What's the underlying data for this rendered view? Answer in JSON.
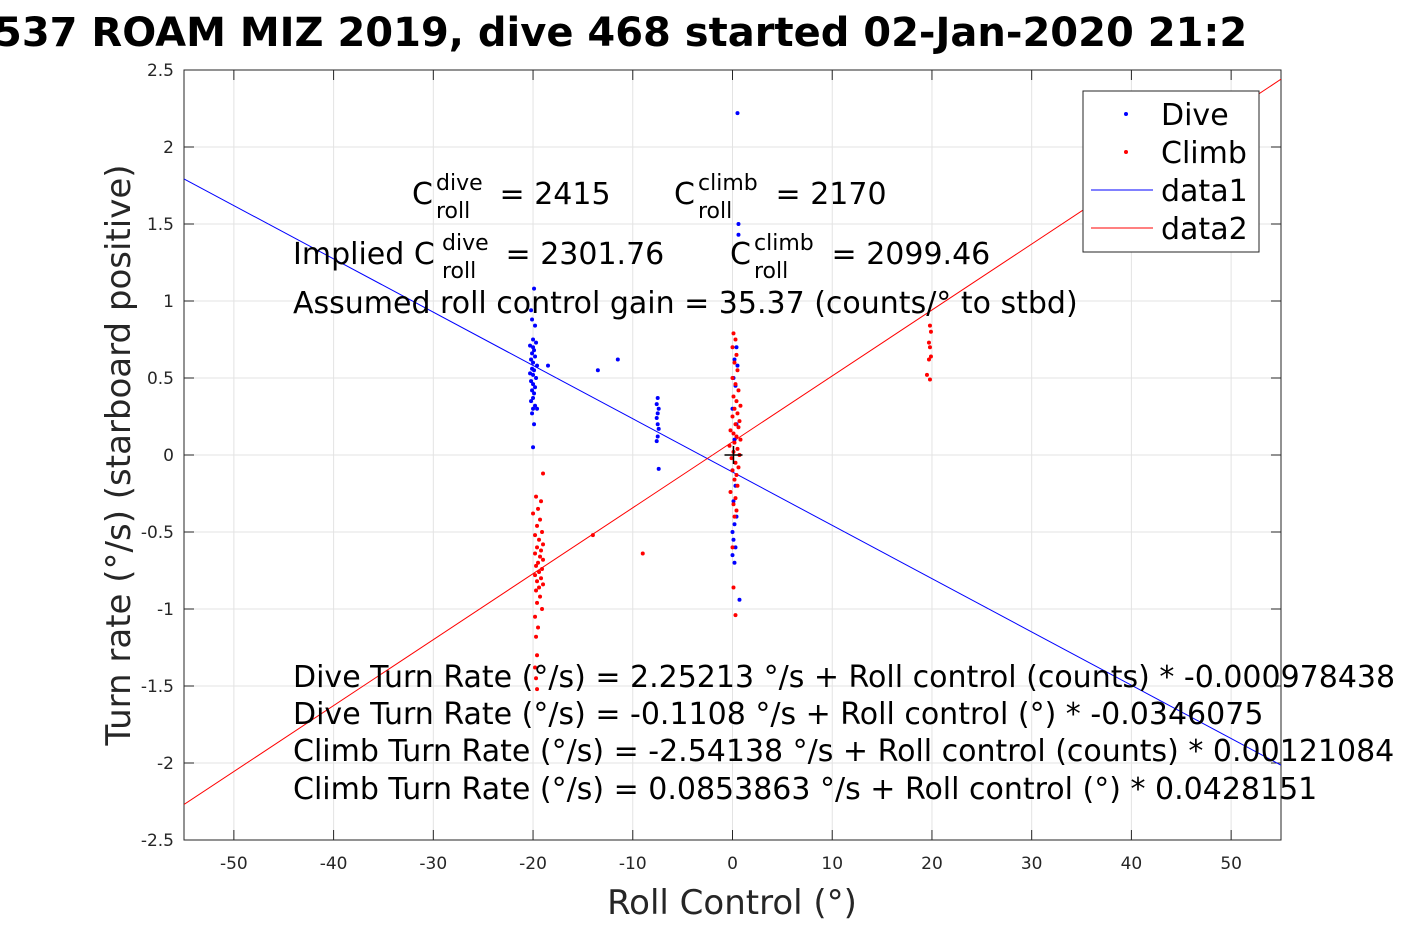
{
  "chart_data": {
    "type": "scatter",
    "title": "537 ROAM MIZ 2019, dive 468 started 02-Jan-2020 21:2",
    "xlabel": "Roll Control (°)",
    "ylabel": "Turn rate (°/s) (starboard positive)",
    "xlim": [
      -55,
      55
    ],
    "ylim": [
      -2.5,
      2.5
    ],
    "xticks": [
      -50,
      -40,
      -30,
      -20,
      -10,
      0,
      10,
      20,
      30,
      40,
      50
    ],
    "yticks": [
      -2.5,
      -2,
      -1.5,
      -1,
      -0.5,
      0,
      0.5,
      1,
      1.5,
      2,
      2.5
    ],
    "grid": true,
    "legend_position": "top-right",
    "legend": [
      {
        "label": "Dive",
        "style": "dot",
        "color": "#0000ff"
      },
      {
        "label": "Climb",
        "style": "dot",
        "color": "#ff0000"
      },
      {
        "label": "data1",
        "style": "line",
        "color": "#0000ff"
      },
      {
        "label": "data2",
        "style": "line",
        "color": "#ff0000"
      }
    ],
    "series": [
      {
        "name": "Dive",
        "color": "#0000ff",
        "points": [
          [
            0.5,
            2.22
          ],
          [
            0.6,
            1.5
          ],
          [
            0.6,
            1.43
          ],
          [
            -19.9,
            1.08
          ],
          [
            -20.2,
            0.94
          ],
          [
            -20.1,
            0.88
          ],
          [
            -19.8,
            0.84
          ],
          [
            -20.0,
            0.75
          ],
          [
            -19.7,
            0.73
          ],
          [
            -20.3,
            0.71
          ],
          [
            -20.0,
            0.7
          ],
          [
            -19.9,
            0.68
          ],
          [
            -20.1,
            0.66
          ],
          [
            -19.8,
            0.64
          ],
          [
            -20.2,
            0.62
          ],
          [
            -20.0,
            0.6
          ],
          [
            -19.6,
            0.58
          ],
          [
            -20.1,
            0.56
          ],
          [
            -19.9,
            0.55
          ],
          [
            -20.3,
            0.53
          ],
          [
            -20.0,
            0.52
          ],
          [
            -19.7,
            0.5
          ],
          [
            -20.2,
            0.48
          ],
          [
            -20.0,
            0.46
          ],
          [
            -19.8,
            0.44
          ],
          [
            -20.1,
            0.42
          ],
          [
            -19.9,
            0.4
          ],
          [
            -20.0,
            0.37
          ],
          [
            -20.2,
            0.35
          ],
          [
            -19.8,
            0.32
          ],
          [
            -20.0,
            0.3
          ],
          [
            -19.6,
            0.3
          ],
          [
            -20.1,
            0.27
          ],
          [
            -19.9,
            0.2
          ],
          [
            -20.0,
            0.05
          ],
          [
            -18.5,
            0.58
          ],
          [
            -13.5,
            0.55
          ],
          [
            -11.5,
            0.62
          ],
          [
            -7.5,
            0.37
          ],
          [
            -7.6,
            0.33
          ],
          [
            -7.4,
            0.3
          ],
          [
            -7.5,
            0.27
          ],
          [
            -7.6,
            0.24
          ],
          [
            -7.5,
            0.2
          ],
          [
            -7.4,
            0.17
          ],
          [
            -7.5,
            0.12
          ],
          [
            -7.6,
            0.09
          ],
          [
            -7.4,
            -0.09
          ],
          [
            0.4,
            0.7
          ],
          [
            0.2,
            0.62
          ],
          [
            0.5,
            0.58
          ],
          [
            0.1,
            0.5
          ],
          [
            0.3,
            0.45
          ],
          [
            0.0,
            0.3
          ],
          [
            0.4,
            0.2
          ],
          [
            0.2,
            0.1
          ],
          [
            0.0,
            -0.1
          ],
          [
            0.3,
            -0.2
          ],
          [
            0.1,
            -0.3
          ],
          [
            0.4,
            -0.4
          ],
          [
            0.2,
            -0.45
          ],
          [
            0.0,
            -0.5
          ],
          [
            0.1,
            -0.55
          ],
          [
            0.3,
            -0.6
          ],
          [
            0.0,
            -0.65
          ],
          [
            0.2,
            -0.7
          ],
          [
            0.7,
            -0.94
          ]
        ]
      },
      {
        "name": "Climb",
        "color": "#ff0000",
        "points": [
          [
            19.8,
            0.84
          ],
          [
            19.9,
            0.8
          ],
          [
            19.7,
            0.73
          ],
          [
            19.8,
            0.7
          ],
          [
            19.9,
            0.64
          ],
          [
            19.7,
            0.62
          ],
          [
            19.5,
            0.52
          ],
          [
            19.8,
            0.49
          ],
          [
            -19.0,
            -0.12
          ],
          [
            -19.7,
            -0.27
          ],
          [
            -19.2,
            -0.3
          ],
          [
            -19.5,
            -0.35
          ],
          [
            -20.0,
            -0.38
          ],
          [
            -19.3,
            -0.42
          ],
          [
            -19.6,
            -0.46
          ],
          [
            -19.1,
            -0.5
          ],
          [
            -19.8,
            -0.52
          ],
          [
            -19.4,
            -0.55
          ],
          [
            -19.0,
            -0.58
          ],
          [
            -19.6,
            -0.6
          ],
          [
            -19.2,
            -0.62
          ],
          [
            -19.8,
            -0.64
          ],
          [
            -19.3,
            -0.66
          ],
          [
            -19.0,
            -0.68
          ],
          [
            -19.5,
            -0.7
          ],
          [
            -19.7,
            -0.72
          ],
          [
            -19.1,
            -0.74
          ],
          [
            -19.4,
            -0.76
          ],
          [
            -19.8,
            -0.78
          ],
          [
            -19.2,
            -0.8
          ],
          [
            -19.6,
            -0.82
          ],
          [
            -19.0,
            -0.84
          ],
          [
            -19.4,
            -0.86
          ],
          [
            -19.7,
            -0.88
          ],
          [
            -19.3,
            -0.92
          ],
          [
            -19.6,
            -0.96
          ],
          [
            -19.1,
            -1.0
          ],
          [
            -19.8,
            -1.05
          ],
          [
            -19.5,
            -1.12
          ],
          [
            -19.7,
            -1.18
          ],
          [
            -19.6,
            -1.3
          ],
          [
            -19.8,
            -1.38
          ],
          [
            -19.7,
            -1.45
          ],
          [
            -19.6,
            -1.52
          ],
          [
            -14.0,
            -0.52
          ],
          [
            -9.0,
            -0.64
          ],
          [
            0.1,
            0.79
          ],
          [
            0.3,
            0.75
          ],
          [
            0.0,
            0.7
          ],
          [
            0.4,
            0.65
          ],
          [
            0.2,
            0.6
          ],
          [
            0.5,
            0.55
          ],
          [
            0.0,
            0.5
          ],
          [
            0.3,
            0.46
          ],
          [
            0.6,
            0.42
          ],
          [
            0.1,
            0.38
          ],
          [
            0.4,
            0.35
          ],
          [
            0.8,
            0.32
          ],
          [
            0.2,
            0.3
          ],
          [
            0.5,
            0.27
          ],
          [
            0.0,
            0.25
          ],
          [
            0.7,
            0.22
          ],
          [
            0.3,
            0.2
          ],
          [
            0.6,
            0.18
          ],
          [
            -0.2,
            0.16
          ],
          [
            0.1,
            0.14
          ],
          [
            0.4,
            0.12
          ],
          [
            0.8,
            0.1
          ],
          [
            0.2,
            0.08
          ],
          [
            -0.3,
            0.06
          ],
          [
            0.5,
            0.04
          ],
          [
            0.1,
            0.02
          ],
          [
            0.7,
            0.0
          ],
          [
            -0.1,
            -0.02
          ],
          [
            0.3,
            -0.05
          ],
          [
            0.6,
            -0.08
          ],
          [
            0.0,
            -0.1
          ],
          [
            0.4,
            -0.13
          ],
          [
            0.2,
            -0.16
          ],
          [
            0.5,
            -0.2
          ],
          [
            -0.2,
            -0.24
          ],
          [
            0.3,
            -0.28
          ],
          [
            0.1,
            -0.32
          ],
          [
            0.4,
            -0.36
          ],
          [
            0.2,
            -0.4
          ],
          [
            0.0,
            -0.6
          ],
          [
            0.1,
            -0.86
          ],
          [
            0.3,
            -1.04
          ]
        ]
      }
    ],
    "lines": [
      {
        "name": "data1",
        "color": "#0000ff",
        "intercept": -0.1108,
        "slope": -0.0346075
      },
      {
        "name": "data2",
        "color": "#ff0000",
        "intercept": 0.0853863,
        "slope": 0.0428151
      }
    ],
    "marker": {
      "x": 0.1,
      "y": 0.0,
      "symbol": "+"
    },
    "annotations": {
      "c_label": "C",
      "sub_roll": "roll",
      "sup_dive": "dive",
      "sup_climb": "climb",
      "c_dive_val": " = 2415",
      "c_climb_val": " = 2170",
      "implied_prefix": "Implied C",
      "implied_dive_val": " = 2301.76",
      "implied_climb_val": " = 2099.46",
      "gain_text": "Assumed roll control gain = 35.37 (counts/° to stbd)",
      "eq1": "Dive Turn Rate (°/s) = 2.25213 °/s + Roll control (counts) * -0.000978438",
      "eq2": "Dive Turn Rate (°/s) = -0.1108 °/s + Roll control (°) * -0.0346075",
      "eq3": "Climb Turn Rate (°/s) = -2.54138 °/s + Roll control (counts) * 0.00121084",
      "eq4": "Climb Turn Rate (°/s) = 0.0853863 °/s + Roll control (°) * 0.0428151"
    }
  }
}
